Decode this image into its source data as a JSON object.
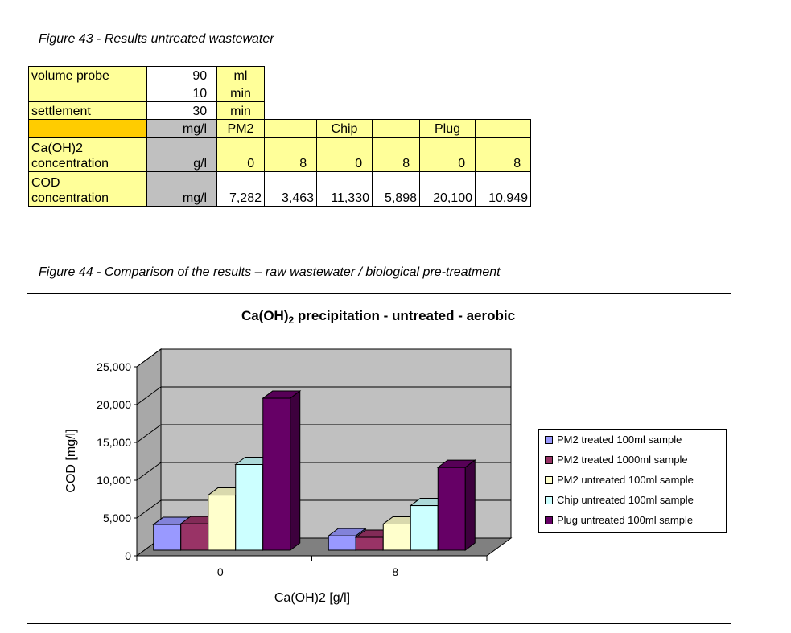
{
  "figure43": {
    "caption": "Figure 43 - Results untreated wastewater",
    "rows": [
      [
        "volume probe",
        "90",
        "ml"
      ],
      [
        "",
        "10",
        "min"
      ],
      [
        "settlement",
        "30",
        "min"
      ]
    ],
    "header": [
      "",
      "mg/l",
      "PM2",
      "",
      "Chip",
      "",
      "Plug",
      ""
    ],
    "ca_label": [
      "Ca(OH)2",
      "concentration"
    ],
    "ca_unit": "g/l",
    "ca_values": [
      "0",
      "8",
      "0",
      "8",
      "0",
      "8"
    ],
    "cod_label": [
      "COD",
      "concentration"
    ],
    "cod_unit": "mg/l",
    "cod_values": [
      "7,282",
      "3,463",
      "11,330",
      "5,898",
      "20,100",
      "10,949"
    ]
  },
  "figure44": {
    "caption": "Figure 44 - Comparison of the results – raw wastewater / biological pre-treatment"
  },
  "chart_data": {
    "type": "bar",
    "title_main": "Ca(OH)",
    "title_sub": "2",
    "title_rest": " precipitation - untreated - aerobic",
    "xlabel": "Ca(OH)2  [g/l]",
    "ylabel": "COD [mg/l]",
    "categories": [
      "0",
      "8"
    ],
    "ylim": [
      0,
      25000
    ],
    "yticks": [
      0,
      5000,
      10000,
      15000,
      20000,
      25000
    ],
    "ytick_labels": [
      "0",
      "5,000",
      "10,000",
      "15,000",
      "20,000",
      "25,000"
    ],
    "grid": true,
    "legend_position": "right",
    "series": [
      {
        "name": "PM2 treated 100ml sample",
        "values": [
          3400,
          1900
        ],
        "color": "#9999ff"
      },
      {
        "name": "PM2 treated 1000ml sample",
        "values": [
          3500,
          1700
        ],
        "color": "#993366"
      },
      {
        "name": "PM2 untreated 100ml sample",
        "values": [
          7282,
          3463
        ],
        "color": "#ffffcc"
      },
      {
        "name": "Chip untreated 100ml sample",
        "values": [
          11330,
          5898
        ],
        "color": "#ccffff"
      },
      {
        "name": "Plug untreated 100ml sample",
        "values": [
          20100,
          10949
        ],
        "color": "#660066"
      }
    ],
    "wall_color": "#c0c0c0"
  }
}
